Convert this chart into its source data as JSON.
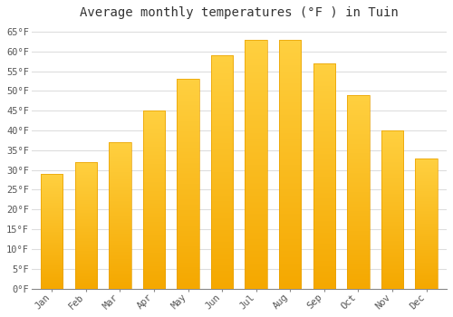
{
  "title": "Average monthly temperatures (°F ) in Tuin",
  "months": [
    "Jan",
    "Feb",
    "Mar",
    "Apr",
    "May",
    "Jun",
    "Jul",
    "Aug",
    "Sep",
    "Oct",
    "Nov",
    "Dec"
  ],
  "values": [
    29,
    32,
    37,
    45,
    53,
    59,
    63,
    63,
    57,
    49,
    40,
    33
  ],
  "bar_color_top": "#FFC125",
  "bar_color_bottom": "#F5A800",
  "bar_edge_color": "#E8A000",
  "background_color": "#FFFFFF",
  "plot_bg_color": "#FFFFFF",
  "grid_color": "#DDDDDD",
  "ylim": [
    0,
    67
  ],
  "yticks": [
    0,
    5,
    10,
    15,
    20,
    25,
    30,
    35,
    40,
    45,
    50,
    55,
    60,
    65
  ],
  "title_fontsize": 10,
  "tick_fontsize": 7.5,
  "font_family": "monospace"
}
